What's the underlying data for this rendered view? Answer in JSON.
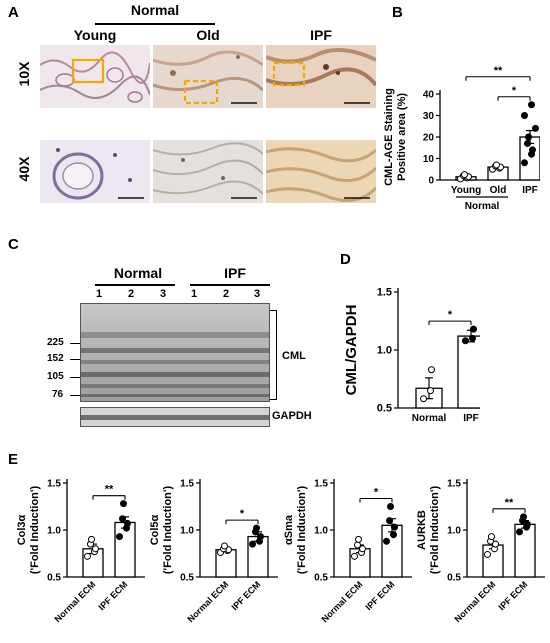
{
  "panel_labels": {
    "a": "A",
    "b": "B",
    "c": "C",
    "d": "D",
    "e": "E"
  },
  "panel_a": {
    "group_header": "Normal",
    "columns": [
      "Young",
      "Old",
      "IPF"
    ],
    "rows": [
      "10X",
      "40X"
    ],
    "colors": {
      "highlight_box": "#f2a900",
      "scale_bar": "#111111"
    }
  },
  "panel_c": {
    "groups": [
      "Normal",
      "IPF"
    ],
    "lanes": [
      "1",
      "2",
      "3",
      "1",
      "2",
      "3"
    ],
    "markers": [
      "225",
      "152",
      "105",
      "76"
    ],
    "bracket_label": "CML",
    "loading_label": "GAPDH"
  },
  "chart_data": [
    {
      "id": "B",
      "type": "bar",
      "ylabel": "CML-AGE Staining\nPositive area (%)",
      "ylim": [
        0,
        40
      ],
      "yticks": [
        0,
        10,
        20,
        30,
        40
      ],
      "categories": [
        "Young",
        "Old",
        "IPF"
      ],
      "group_label": "Normal",
      "values": [
        1.5,
        6,
        20
      ],
      "errors": [
        0.6,
        0.8,
        3
      ],
      "points": [
        [
          0.5,
          1,
          1.5,
          2,
          2.5
        ],
        [
          5,
          5.5,
          6,
          6.5,
          7
        ],
        [
          8,
          12,
          14,
          17,
          20,
          24,
          30,
          35
        ]
      ],
      "fill": [
        "open",
        "open",
        "filled"
      ],
      "significance": [
        {
          "from": 0,
          "to": 2,
          "label": "**"
        },
        {
          "from": 1,
          "to": 2,
          "label": "*"
        }
      ]
    },
    {
      "id": "D",
      "type": "bar",
      "ylabel": "CML/GAPDH",
      "ylim": [
        0.5,
        1.5
      ],
      "yticks": [
        0.5,
        1.0,
        1.5
      ],
      "categories": [
        "Normal",
        "IPF"
      ],
      "values": [
        0.67,
        1.12
      ],
      "errors": [
        0.09,
        0.05
      ],
      "points": [
        [
          0.58,
          0.65,
          0.83
        ],
        [
          1.08,
          1.1,
          1.18
        ]
      ],
      "fill": [
        "open",
        "filled"
      ],
      "significance": [
        {
          "from": 0,
          "to": 1,
          "label": "*"
        }
      ]
    },
    {
      "id": "E1",
      "type": "bar",
      "ylabel": "Col3α\n('Fold Induction')",
      "ylim": [
        0.5,
        1.5
      ],
      "yticks": [
        0.5,
        1.0,
        1.5
      ],
      "categories": [
        "Normal ECM",
        "IPF ECM"
      ],
      "values": [
        0.8,
        1.08
      ],
      "errors": [
        0.05,
        0.06
      ],
      "points": [
        [
          0.72,
          0.77,
          0.8,
          0.85,
          0.9
        ],
        [
          0.93,
          1.02,
          1.07,
          1.12,
          1.28
        ]
      ],
      "fill": [
        "open",
        "filled"
      ],
      "significance": [
        {
          "from": 0,
          "to": 1,
          "label": "**"
        }
      ]
    },
    {
      "id": "E2",
      "type": "bar",
      "ylabel": "Col5α\n('Fold Induction')",
      "ylim": [
        0.5,
        1.5
      ],
      "yticks": [
        0.5,
        1.0,
        1.5
      ],
      "categories": [
        "Normal ECM",
        "IPF ECM"
      ],
      "values": [
        0.79,
        0.93
      ],
      "errors": [
        0.02,
        0.05
      ],
      "points": [
        [
          0.76,
          0.78,
          0.79,
          0.8,
          0.83
        ],
        [
          0.85,
          0.88,
          0.93,
          0.98,
          1.02
        ]
      ],
      "fill": [
        "open",
        "filled"
      ],
      "significance": [
        {
          "from": 0,
          "to": 1,
          "label": "*"
        }
      ]
    },
    {
      "id": "E3",
      "type": "bar",
      "ylabel": "αSma\n('Fold Induction')",
      "ylim": [
        0.5,
        1.5
      ],
      "yticks": [
        0.5,
        1.0,
        1.5
      ],
      "categories": [
        "Normal ECM",
        "IPF ECM"
      ],
      "values": [
        0.8,
        1.05
      ],
      "errors": [
        0.04,
        0.07
      ],
      "points": [
        [
          0.72,
          0.76,
          0.8,
          0.84,
          0.9
        ],
        [
          0.88,
          0.95,
          1.03,
          1.1,
          1.25
        ]
      ],
      "fill": [
        "open",
        "filled"
      ],
      "significance": [
        {
          "from": 0,
          "to": 1,
          "label": "*"
        }
      ]
    },
    {
      "id": "E4",
      "type": "bar",
      "ylabel": "AURKB\n('Fold Induction')",
      "ylim": [
        0.5,
        1.5
      ],
      "yticks": [
        0.5,
        1.0,
        1.5
      ],
      "categories": [
        "Normal ECM",
        "IPF ECM"
      ],
      "values": [
        0.84,
        1.06
      ],
      "errors": [
        0.04,
        0.04
      ],
      "points": [
        [
          0.74,
          0.8,
          0.85,
          0.88,
          0.93
        ],
        [
          0.98,
          1.03,
          1.06,
          1.1,
          1.14
        ]
      ],
      "fill": [
        "open",
        "filled"
      ],
      "significance": [
        {
          "from": 0,
          "to": 1,
          "label": "**"
        }
      ]
    }
  ]
}
